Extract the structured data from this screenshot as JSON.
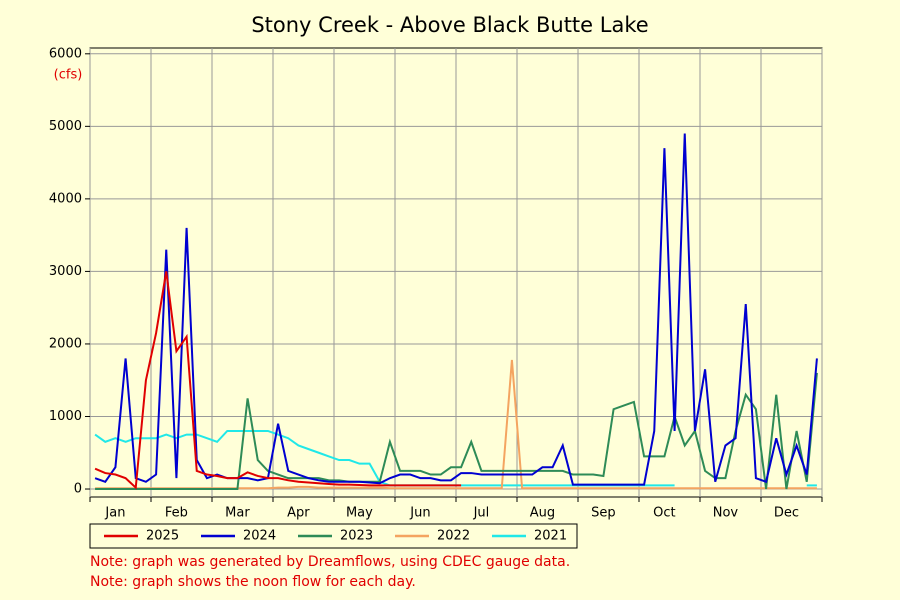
{
  "chart_data": {
    "type": "line",
    "title": "Stony Creek - Above Black Butte Lake",
    "y_unit": "(cfs)",
    "categories": [
      null,
      null,
      "Jan",
      null,
      null,
      null,
      null,
      null,
      "Feb",
      null,
      null,
      null,
      null,
      null,
      "Mar",
      null,
      null,
      null,
      null,
      null,
      "Apr",
      null,
      null,
      null,
      null,
      null,
      "May",
      null,
      null,
      null,
      null,
      null,
      "Jun",
      null,
      null,
      null,
      null,
      null,
      "Jul",
      null,
      null,
      null,
      null,
      null,
      "Aug",
      null,
      null,
      null,
      null,
      null,
      "Sep",
      null,
      null,
      null,
      null,
      null,
      "Oct",
      null,
      null,
      null,
      null,
      null,
      "Nov",
      null,
      null,
      null,
      null,
      null,
      "Dec",
      null,
      null,
      null
    ],
    "ylim": [
      -110,
      6080
    ],
    "yticks": [
      0,
      1000,
      2000,
      3000,
      4000,
      5000,
      6000
    ],
    "grid": true,
    "series": [
      {
        "name": "2025",
        "color": "#e00000",
        "values": [
          280,
          220,
          200,
          150,
          20,
          1500,
          2150,
          3000,
          1900,
          2100,
          250,
          200,
          180,
          150,
          150,
          230,
          180,
          150,
          150,
          120,
          100,
          90,
          80,
          70,
          60,
          60,
          55,
          50,
          50,
          50,
          50,
          50,
          50,
          50,
          50,
          50,
          50,
          null,
          null,
          null,
          null,
          null,
          null,
          null,
          null,
          null,
          null,
          null,
          null,
          null,
          null,
          null,
          null,
          null,
          null,
          null,
          null,
          null,
          null,
          null,
          null,
          null,
          null,
          null,
          null,
          null,
          null,
          null,
          null,
          null,
          null,
          null
        ]
      },
      {
        "name": "2024",
        "color": "#0000d0",
        "values": [
          150,
          100,
          300,
          1800,
          150,
          100,
          200,
          3300,
          150,
          3600,
          400,
          150,
          200,
          150,
          150,
          150,
          120,
          150,
          900,
          250,
          200,
          150,
          120,
          100,
          100,
          100,
          100,
          90,
          80,
          150,
          200,
          200,
          150,
          150,
          120,
          120,
          220,
          220,
          200,
          200,
          200,
          200,
          200,
          200,
          300,
          300,
          600,
          60,
          60,
          60,
          60,
          60,
          60,
          60,
          60,
          800,
          4700,
          800,
          4900,
          800,
          1650,
          100,
          600,
          700,
          2550,
          150,
          100,
          700,
          200,
          600,
          200,
          1800
        ]
      },
      {
        "name": "2023",
        "color": "#2e8b57",
        "values": [
          0,
          0,
          0,
          0,
          0,
          0,
          0,
          0,
          0,
          0,
          0,
          0,
          0,
          0,
          0,
          1250,
          400,
          250,
          200,
          150,
          150,
          150,
          150,
          120,
          120,
          100,
          100,
          100,
          100,
          650,
          250,
          250,
          250,
          200,
          200,
          300,
          300,
          650,
          250,
          250,
          250,
          250,
          250,
          250,
          250,
          250,
          250,
          200,
          200,
          200,
          180,
          1100,
          1150,
          1200,
          450,
          450,
          450,
          1000,
          600,
          800,
          250,
          150,
          150,
          800,
          1300,
          1100,
          0,
          1300,
          0,
          800,
          100,
          1600
        ]
      },
      {
        "name": "2022",
        "color": "#f4a460",
        "values": [
          10,
          10,
          10,
          10,
          10,
          10,
          10,
          10,
          10,
          10,
          10,
          10,
          10,
          10,
          10,
          10,
          10,
          10,
          20,
          20,
          30,
          30,
          20,
          20,
          20,
          20,
          20,
          20,
          20,
          10,
          10,
          10,
          10,
          10,
          10,
          10,
          10,
          10,
          10,
          10,
          10,
          1780,
          10,
          10,
          10,
          10,
          10,
          10,
          10,
          10,
          10,
          10,
          10,
          10,
          10,
          10,
          10,
          10,
          10,
          10,
          10,
          10,
          10,
          10,
          10,
          10,
          10,
          10,
          10,
          10,
          10,
          10
        ]
      },
      {
        "name": "2021",
        "color": "#20e8e8",
        "values": [
          750,
          650,
          700,
          650,
          700,
          700,
          700,
          750,
          700,
          750,
          750,
          700,
          650,
          800,
          800,
          800,
          800,
          800,
          750,
          700,
          600,
          550,
          500,
          450,
          400,
          400,
          350,
          350,
          100,
          50,
          50,
          50,
          50,
          50,
          50,
          50,
          50,
          50,
          50,
          50,
          50,
          50,
          50,
          50,
          50,
          50,
          50,
          50,
          50,
          50,
          50,
          50,
          50,
          50,
          50,
          50,
          50,
          50,
          null,
          null,
          null,
          null,
          null,
          null,
          null,
          null,
          null,
          null,
          null,
          null,
          50,
          50
        ]
      }
    ],
    "notes": [
      "Note: graph was generated by Dreamflows, using CDEC gauge data.",
      "Note: graph shows the noon flow for each day."
    ]
  }
}
